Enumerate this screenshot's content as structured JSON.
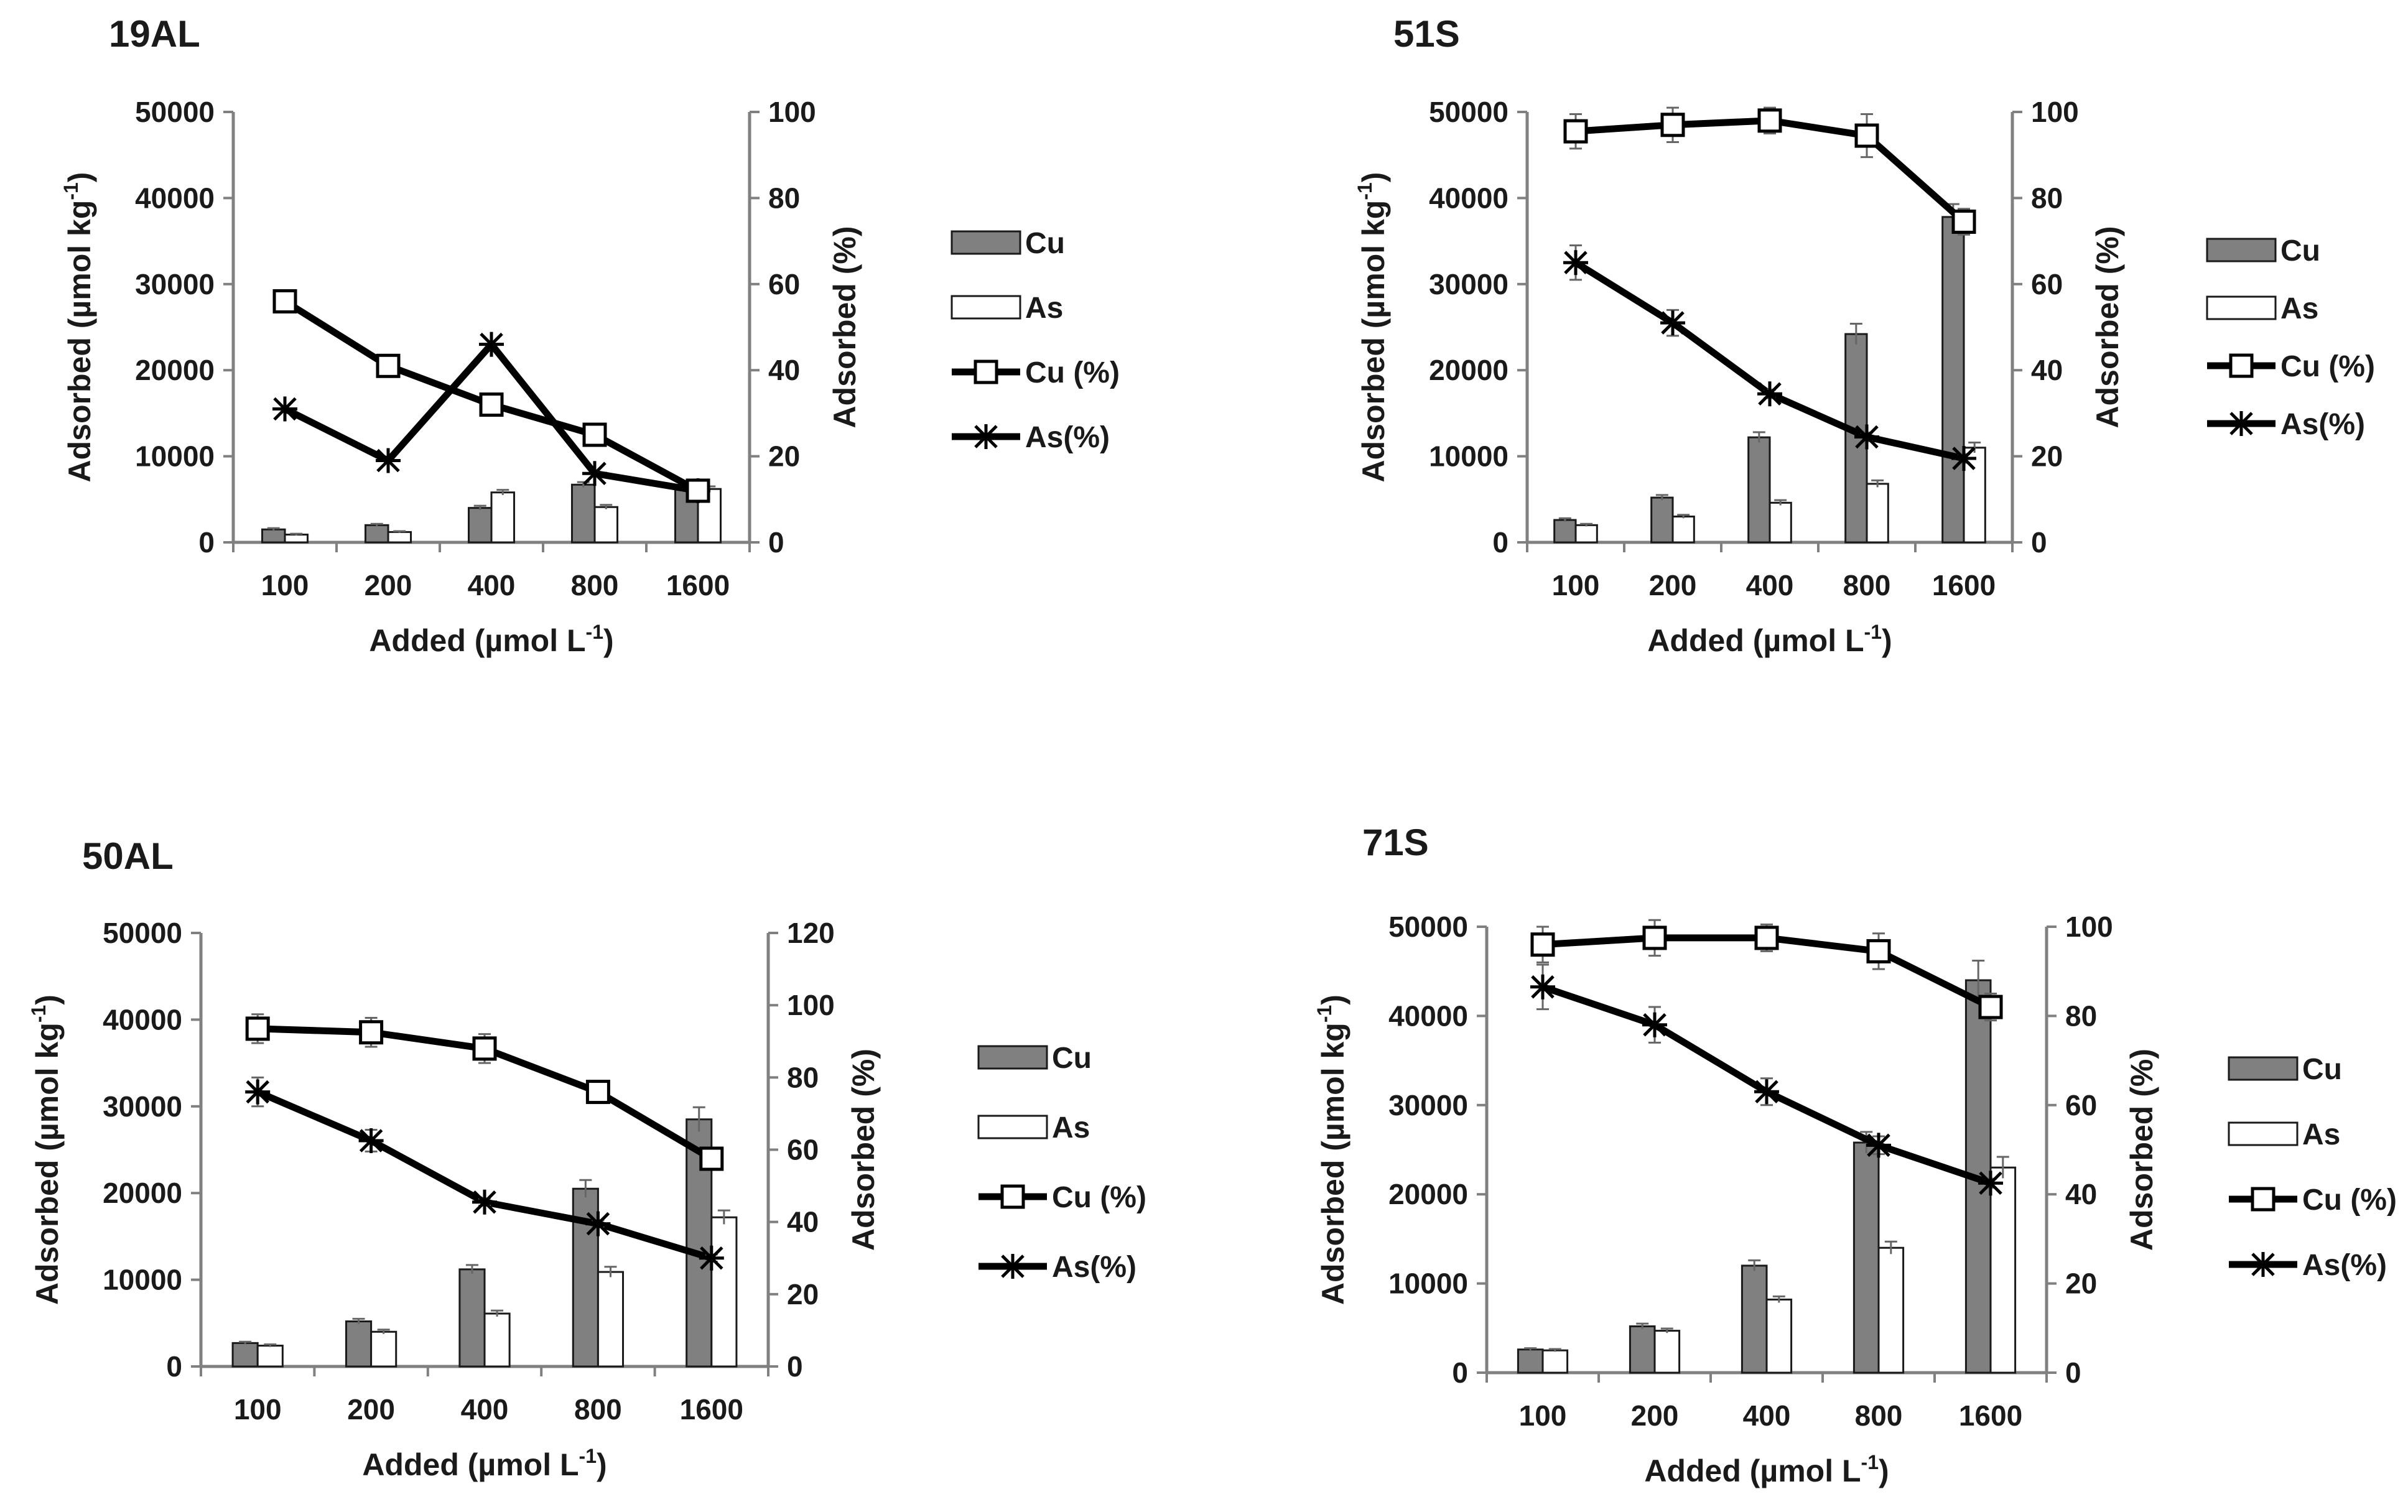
{
  "colors": {
    "cu_bar": "#808080",
    "as_bar": "#ffffff",
    "line": "#000000",
    "error_bar": "#666666"
  },
  "icons": {
    "cu_marker": "open-square-marker",
    "as_marker": "asterisk-marker"
  },
  "chart_data": [
    {
      "type": "bar",
      "title": "19AL",
      "categories": [
        "100",
        "200",
        "400",
        "800",
        "1600"
      ],
      "xlabel": "Added (µmol L",
      "xlabel_sup": "-1",
      "xlabel_tail": ")",
      "ylabel": "Adsorbed (µmol kg",
      "ylabel_sup": "-1",
      "ylabel_tail": ")",
      "y2label": "Adsorbed (%)",
      "ylim": [
        0,
        50000
      ],
      "y2lim": [
        0,
        100
      ],
      "yticks": [
        0,
        10000,
        20000,
        30000,
        40000,
        50000
      ],
      "y2ticks": [
        0,
        20,
        40,
        60,
        80,
        100
      ],
      "legend_position": "right",
      "series": [
        {
          "name": "Cu",
          "kind": "bar",
          "values": [
            1500,
            2000,
            4000,
            6700,
            6200
          ],
          "errors": [
            150,
            150,
            250,
            300,
            300
          ]
        },
        {
          "name": "As",
          "kind": "bar",
          "values": [
            900,
            1200,
            5800,
            4100,
            6200
          ],
          "errors": [
            100,
            100,
            300,
            250,
            300
          ]
        },
        {
          "name": "Cu (%)",
          "kind": "line",
          "axis": "right",
          "values": [
            56,
            41,
            32,
            25,
            12
          ],
          "errors": [
            0,
            0,
            0,
            0,
            0
          ]
        },
        {
          "name": "As(%)",
          "kind": "line",
          "axis": "right",
          "values": [
            31,
            19,
            46,
            16,
            12
          ],
          "errors": [
            0,
            0,
            0,
            0,
            0
          ]
        }
      ]
    },
    {
      "type": "bar",
      "title": "51S",
      "categories": [
        "100",
        "200",
        "400",
        "800",
        "1600"
      ],
      "xlabel": "Added (µmol L",
      "xlabel_sup": "-1",
      "xlabel_tail": ")",
      "ylabel": "Adsorbed (µmol kg",
      "ylabel_sup": "-1",
      "ylabel_tail": ")",
      "y2label": "Adsorbed (%)",
      "ylim": [
        0,
        50000
      ],
      "y2lim": [
        0,
        100
      ],
      "yticks": [
        0,
        10000,
        20000,
        30000,
        40000,
        50000
      ],
      "y2ticks": [
        0,
        20,
        40,
        60,
        80,
        100
      ],
      "legend_position": "right",
      "series": [
        {
          "name": "Cu",
          "kind": "bar",
          "values": [
            2600,
            5200,
            12200,
            24200,
            37800
          ],
          "errors": [
            200,
            300,
            600,
            1200,
            1500
          ]
        },
        {
          "name": "As",
          "kind": "bar",
          "values": [
            2000,
            3000,
            4600,
            6800,
            11000
          ],
          "errors": [
            150,
            200,
            300,
            400,
            600
          ]
        },
        {
          "name": "Cu (%)",
          "kind": "line",
          "axis": "right",
          "values": [
            95.5,
            97,
            98,
            94.5,
            74.5
          ],
          "errors": [
            4,
            4,
            3,
            5,
            3
          ]
        },
        {
          "name": "As(%)",
          "kind": "line",
          "axis": "right",
          "values": [
            65,
            51,
            34.5,
            24.5,
            19.5
          ],
          "errors": [
            4,
            3,
            1,
            1,
            1
          ]
        }
      ]
    },
    {
      "type": "bar",
      "title": "50AL",
      "categories": [
        "100",
        "200",
        "400",
        "800",
        "1600"
      ],
      "xlabel": "Added (µmol L",
      "xlabel_sup": "-1",
      "xlabel_tail": ")",
      "ylabel": "Adsorbed (µmol kg",
      "ylabel_sup": "-1",
      "ylabel_tail": ")",
      "y2label": "Adsorbed (%)",
      "ylim": [
        0,
        50000
      ],
      "y2lim": [
        0,
        120
      ],
      "yticks": [
        0,
        10000,
        20000,
        30000,
        40000,
        50000
      ],
      "y2ticks": [
        0,
        20,
        40,
        60,
        80,
        100,
        120
      ],
      "legend_position": "right",
      "series": [
        {
          "name": "Cu",
          "kind": "bar",
          "values": [
            2700,
            5200,
            11200,
            20500,
            28500
          ],
          "errors": [
            150,
            300,
            500,
            1000,
            1400
          ]
        },
        {
          "name": "As",
          "kind": "bar",
          "values": [
            2400,
            4000,
            6100,
            10900,
            17200
          ],
          "errors": [
            150,
            250,
            350,
            600,
            800
          ]
        },
        {
          "name": "Cu (%)",
          "kind": "line",
          "axis": "right",
          "values": [
            93.5,
            92.5,
            88,
            76,
            57.5
          ],
          "errors": [
            4,
            4,
            4,
            3,
            3
          ]
        },
        {
          "name": "As(%)",
          "kind": "line",
          "axis": "right",
          "values": [
            76,
            62.5,
            45.5,
            39.5,
            30
          ],
          "errors": [
            4,
            3,
            1,
            1,
            1
          ]
        }
      ]
    },
    {
      "type": "bar",
      "title": "71S",
      "categories": [
        "100",
        "200",
        "400",
        "800",
        "1600"
      ],
      "xlabel": "Added (µmol L",
      "xlabel_sup": "-1",
      "xlabel_tail": ")",
      "ylabel": "Adsorbed (µmol kg",
      "ylabel_sup": "-1",
      "ylabel_tail": ")",
      "y2label": "Adsorbed (%)",
      "ylim": [
        0,
        50000
      ],
      "y2lim": [
        0,
        100
      ],
      "yticks": [
        0,
        10000,
        20000,
        30000,
        40000,
        50000
      ],
      "y2ticks": [
        0,
        20,
        40,
        60,
        80,
        100
      ],
      "legend_position": "right",
      "series": [
        {
          "name": "Cu",
          "kind": "bar",
          "values": [
            2600,
            5200,
            12000,
            25800,
            44000
          ],
          "errors": [
            150,
            300,
            600,
            1200,
            2200
          ]
        },
        {
          "name": "As",
          "kind": "bar",
          "values": [
            2500,
            4700,
            8200,
            14000,
            23000
          ],
          "errors": [
            150,
            250,
            350,
            700,
            1200
          ]
        },
        {
          "name": "Cu (%)",
          "kind": "line",
          "axis": "right",
          "values": [
            96,
            97.5,
            97.5,
            94.5,
            82
          ],
          "errors": [
            4,
            4,
            3,
            4,
            3
          ]
        },
        {
          "name": "As(%)",
          "kind": "line",
          "axis": "right",
          "values": [
            86.5,
            78,
            63,
            51,
            42.5
          ],
          "errors": [
            5,
            4,
            3,
            2,
            1
          ]
        }
      ]
    }
  ]
}
